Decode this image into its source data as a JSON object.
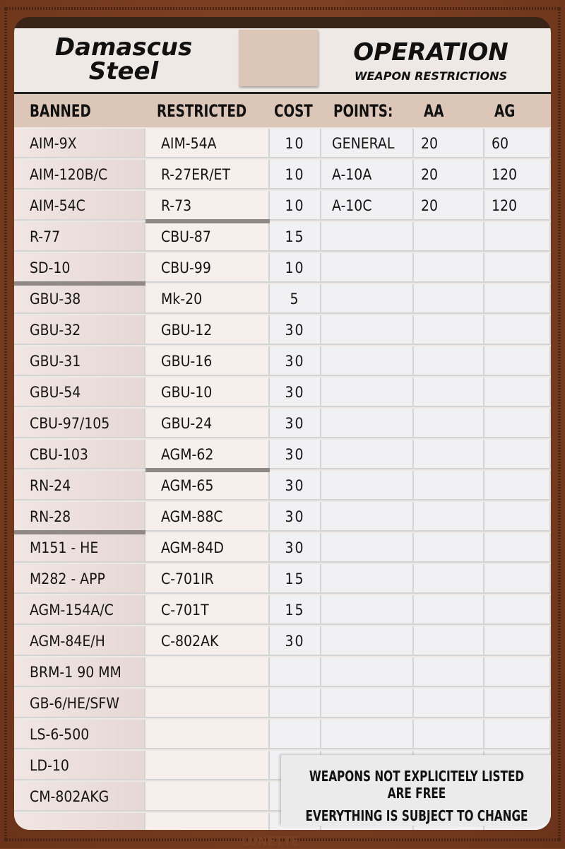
{
  "logo": {
    "line1": "Damascus",
    "line2": "Steel"
  },
  "title": "OPERATION",
  "subtitle": "WEAPON RESTRICTIONS",
  "columns": {
    "banned": "BANNED",
    "restricted": "RESTRICTED",
    "cost": "COST",
    "points": "POINTS:",
    "aa": "AA",
    "ag": "AG"
  },
  "banned": [
    "AIM-9X",
    "AIM-120B/C",
    "AIM-54C",
    "R-77",
    "SD-10",
    "GBU-38",
    "GBU-32",
    "GBU-31",
    "GBU-54",
    "CBU-97/105",
    "CBU-103",
    "RN-24",
    "RN-28",
    "M151 - HE",
    "M282 - APP",
    "AGM-154A/C",
    "AGM-84E/H",
    "BRM-1 90 MM",
    "GB-6/HE/SFW",
    "LS-6-500",
    "LD-10",
    "CM-802AKG"
  ],
  "restricted": [
    {
      "name": "AIM-54A",
      "cost": "10"
    },
    {
      "name": "R-27ER/ET",
      "cost": "10"
    },
    {
      "name": "R-73",
      "cost": "10"
    },
    {
      "name": "CBU-87",
      "cost": "15"
    },
    {
      "name": "CBU-99",
      "cost": "10"
    },
    {
      "name": "Mk-20",
      "cost": "5"
    },
    {
      "name": "GBU-12",
      "cost": "30"
    },
    {
      "name": "GBU-16",
      "cost": "30"
    },
    {
      "name": "GBU-10",
      "cost": "30"
    },
    {
      "name": "GBU-24",
      "cost": "30"
    },
    {
      "name": "AGM-62",
      "cost": "30"
    },
    {
      "name": "AGM-65",
      "cost": "30"
    },
    {
      "name": "AGM-88C",
      "cost": "30"
    },
    {
      "name": "AGM-84D",
      "cost": "30"
    },
    {
      "name": "C-701IR",
      "cost": "15"
    },
    {
      "name": "C-701T",
      "cost": "15"
    },
    {
      "name": "C-802AK",
      "cost": "30"
    }
  ],
  "points": [
    {
      "name": "GENERAL",
      "aa": "20",
      "ag": "60"
    },
    {
      "name": "A-10A",
      "aa": "20",
      "ag": "120"
    },
    {
      "name": "A-10C",
      "aa": "20",
      "ag": "120"
    }
  ],
  "footer": {
    "line1": "WEAPONS NOT EXPLICITELY LISTED ARE FREE",
    "line2": "EVERYTHING IS SUBJECT TO CHANGE"
  },
  "brand": "LUNETTE"
}
